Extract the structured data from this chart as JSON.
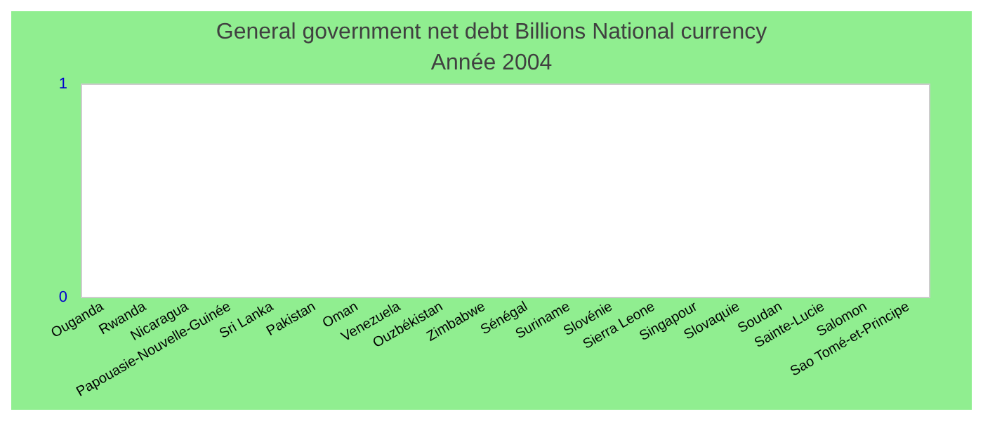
{
  "chart_data": {
    "type": "bar",
    "title": "General government net debt Billions National currency",
    "subtitle": "Année 2004",
    "categories": [
      "Ouganda",
      "Rwanda",
      "Nicaragua",
      "Papouasie-Nouvelle-Guinée",
      "Sri Lanka",
      "Pakistan",
      "Oman",
      "Venezuela",
      "Ouzbékistan",
      "Zimbabwe",
      "Sénégal",
      "Suriname",
      "Slovénie",
      "Sierra Leone",
      "Singapour",
      "Slovaquie",
      "Soudan",
      "Sainte-Lucie",
      "Salomon",
      "Sao Tomé-et-Principe"
    ],
    "values": [
      0,
      0,
      0,
      0,
      0,
      0,
      0,
      0,
      0,
      0,
      0,
      0,
      0,
      0,
      0,
      0,
      0,
      0,
      0,
      0
    ],
    "ylim": [
      0,
      1
    ],
    "yticks": [
      0,
      1
    ],
    "grid": false
  }
}
